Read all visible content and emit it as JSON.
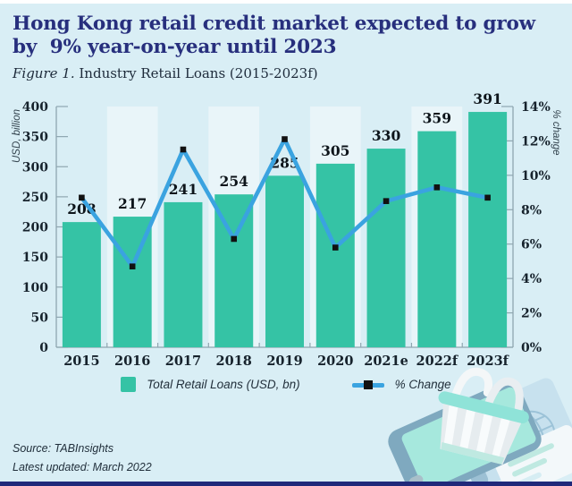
{
  "header": {
    "title_line1": "Hong Kong retail credit market expected to grow",
    "title_line2": "by  9% year-on-year until 2023",
    "figure_label": "Figure 1.",
    "figure_caption": " Industry Retail Loans (2015-2023f)"
  },
  "colors": {
    "background": "#d9eef5",
    "bar": "#35c3a5",
    "line": "#3aa3e0",
    "marker": "#111111",
    "stripe": "#e9f5f9",
    "axis": "#8fa6b0",
    "tick_text": "#16222c",
    "data_label": "#0d141a",
    "title": "#272f7d",
    "bottom_bar": "#20297a"
  },
  "chart_data": {
    "type": "bar",
    "categories": [
      "2015",
      "2016",
      "2017",
      "2018",
      "2019",
      "2020",
      "2021e",
      "2022f",
      "2023f"
    ],
    "series": [
      {
        "name": "Total Retail Loans (USD, bn)",
        "type": "bar",
        "axis": "left",
        "values": [
          208,
          217,
          241,
          254,
          285,
          305,
          330,
          359,
          391
        ]
      },
      {
        "name": "% Change",
        "type": "line",
        "axis": "right",
        "values": [
          8.7,
          4.7,
          11.5,
          6.3,
          12.1,
          5.8,
          8.5,
          9.3,
          8.7
        ]
      }
    ],
    "left_axis": {
      "label": "USD, billion",
      "min": 0,
      "max": 400,
      "tick_values": [
        0,
        50,
        100,
        150,
        200,
        250,
        300,
        350,
        400
      ],
      "tick_labels": [
        "0",
        "50",
        "100",
        "150",
        "200",
        "250",
        "300",
        "350",
        "400"
      ]
    },
    "right_axis": {
      "label": "% change",
      "min": 0,
      "max": 14,
      "tick_values": [
        0,
        2,
        4,
        6,
        8,
        10,
        12,
        14
      ],
      "tick_labels": [
        "0%",
        "2%",
        "4%",
        "6%",
        "8%",
        "10%",
        "12%",
        "14%"
      ]
    },
    "striped_categories": [
      1,
      3,
      5,
      7
    ],
    "grid": false,
    "legend_position": "bottom"
  },
  "legend": {
    "items": [
      {
        "label": "Total Retail Loans (USD, bn)"
      },
      {
        "label": "% Change"
      }
    ]
  },
  "footer": {
    "source": "Source: TABInsights",
    "updated": "Latest updated: March 2022"
  }
}
